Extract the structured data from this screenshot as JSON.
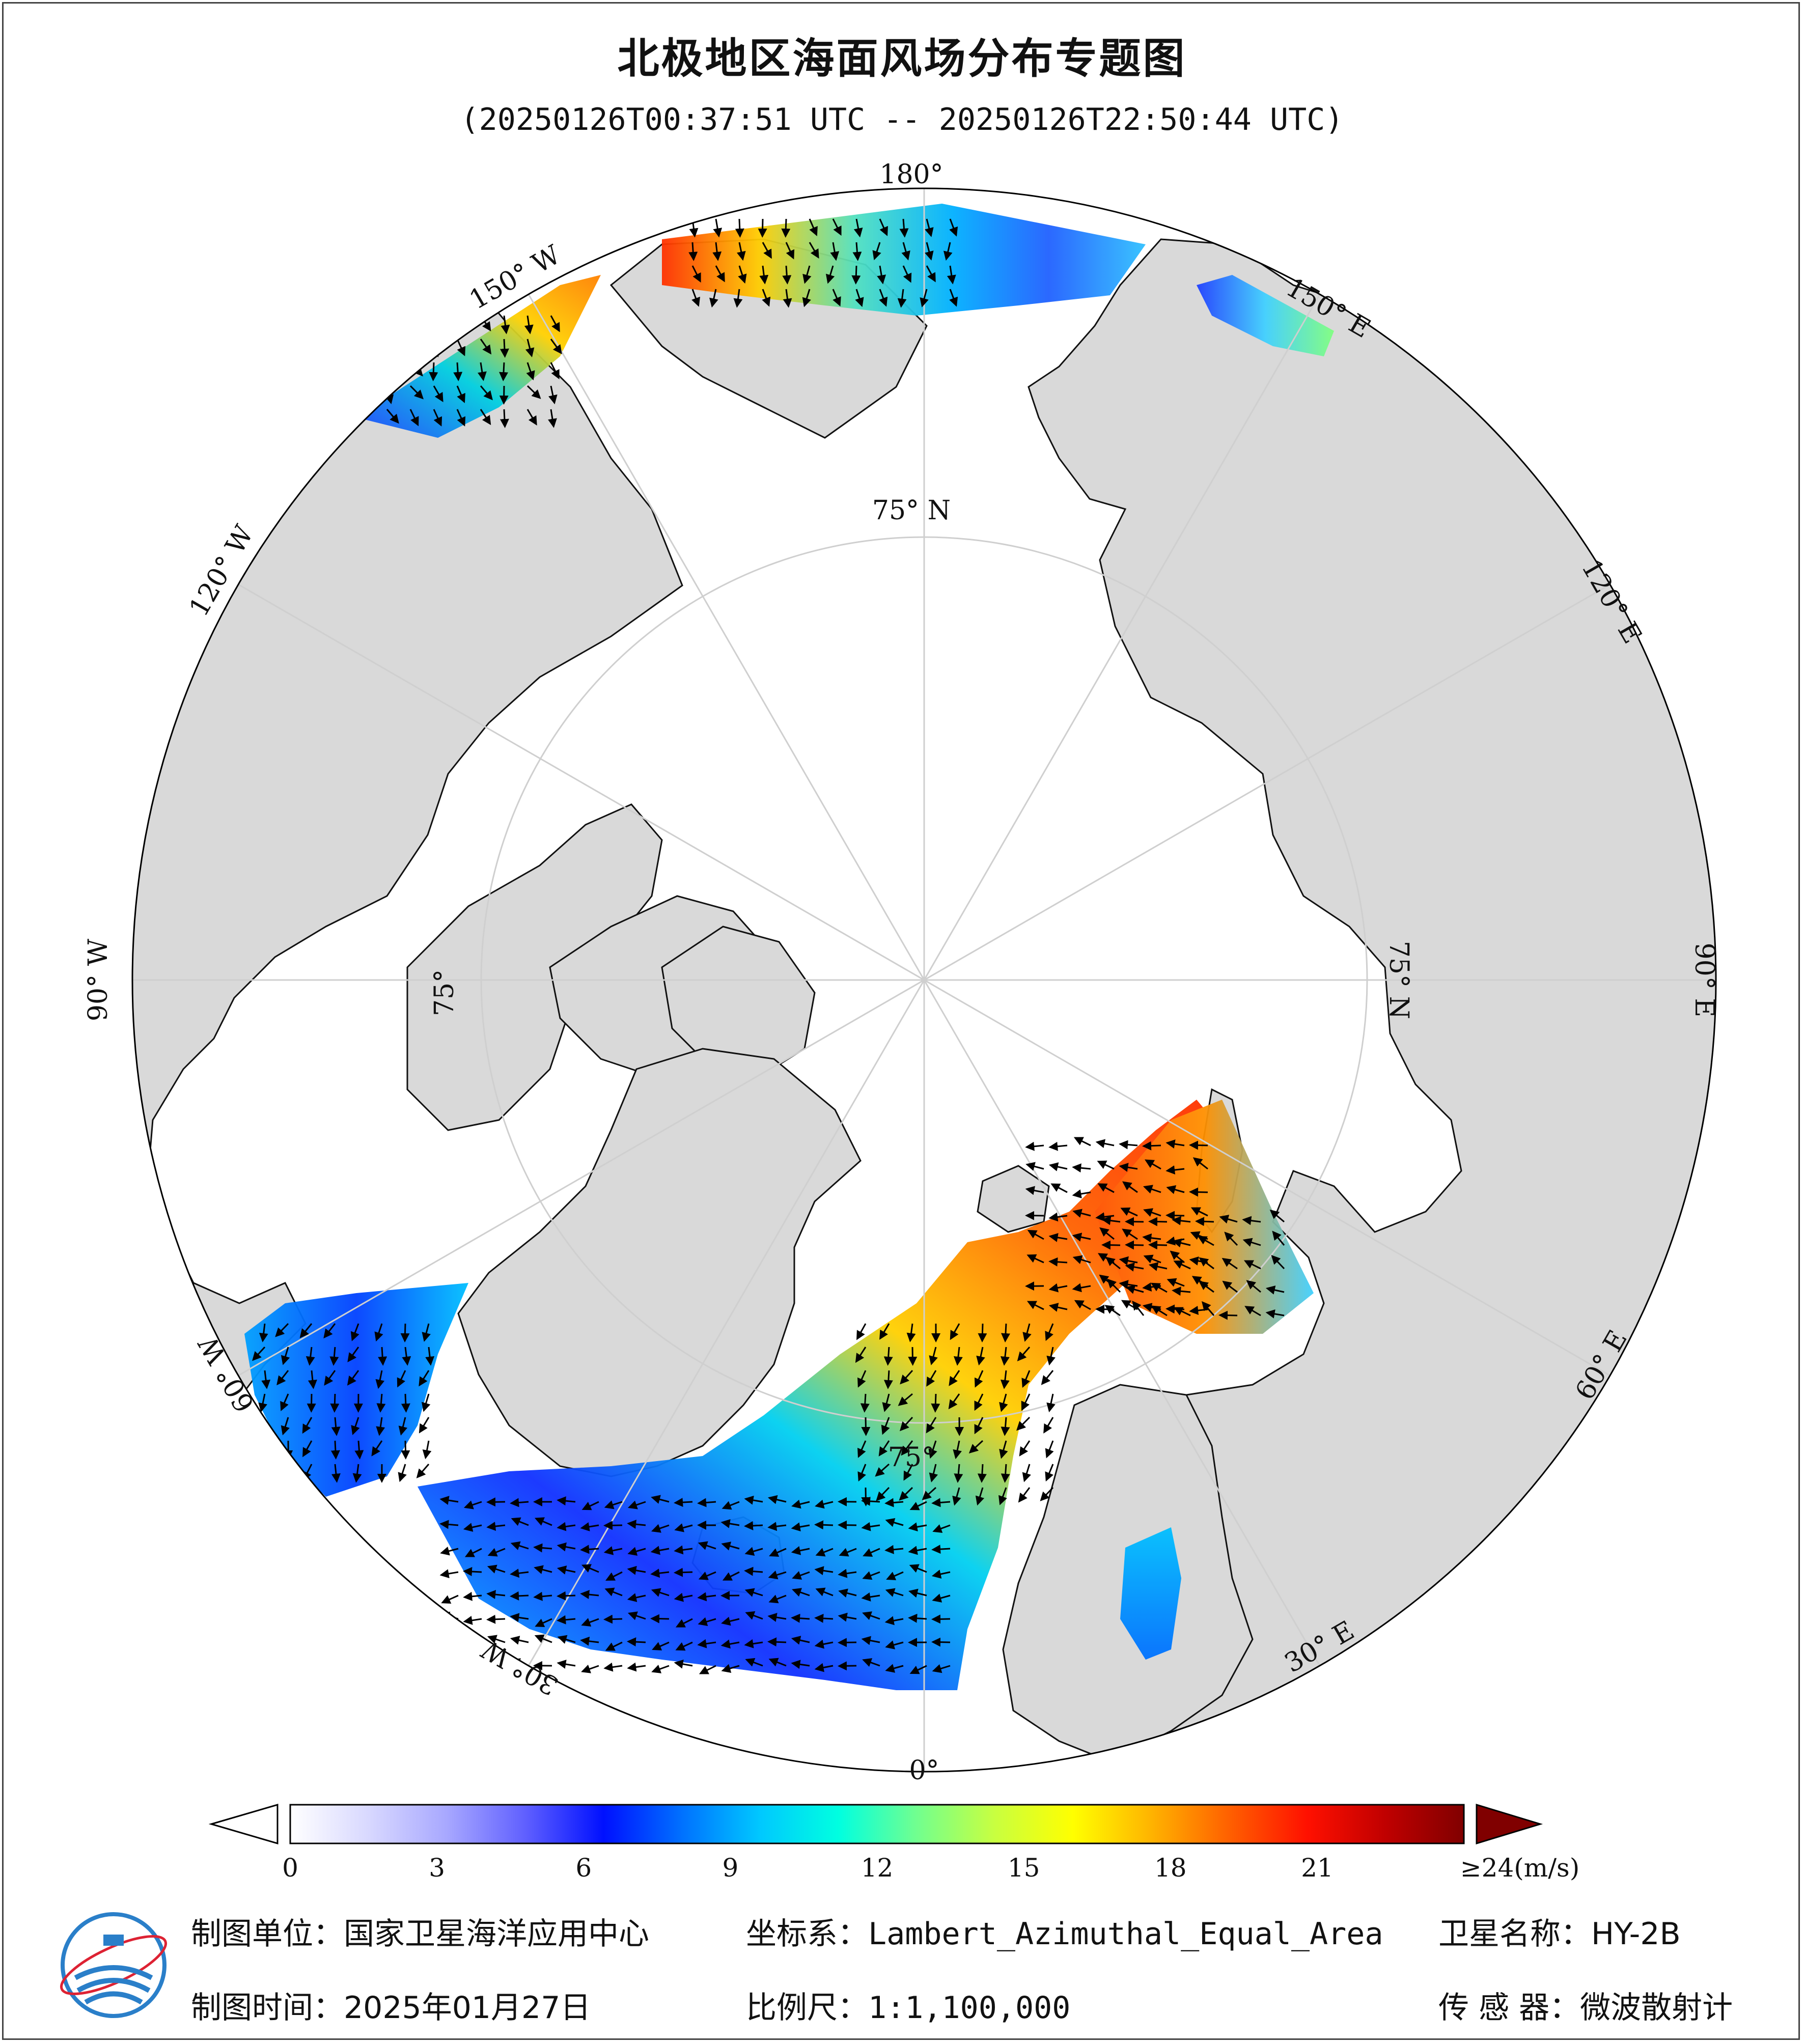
{
  "title": "北极地区海面风场分布专题图",
  "subtitle": "(20250126T00:37:51 UTC -- 20250126T22:50:44 UTC)",
  "graticule": {
    "longitude_labels": [
      "180°",
      "150° E",
      "120° E",
      "90° E",
      "60° E",
      "30° E",
      "0°",
      "30° W",
      "60° W",
      "90° W",
      "120° W",
      "150° W"
    ],
    "latitude_label": "75° N",
    "latitude_label_short": "75°"
  },
  "colorbar": {
    "ticks": [
      "0",
      "3",
      "6",
      "9",
      "12",
      "15",
      "18",
      "21",
      "≥24(m/s)"
    ],
    "tick_values": [
      0,
      3,
      6,
      9,
      12,
      15,
      18,
      21,
      24
    ],
    "min": 0,
    "max": 24,
    "unit": "m/s",
    "colors": [
      "#ffffff",
      "#d8d8ff",
      "#a8a8ff",
      "#6060ff",
      "#0010ff",
      "#0070ff",
      "#00c8ff",
      "#00ffe0",
      "#70ff90",
      "#c8ff40",
      "#ffff00",
      "#ffb400",
      "#ff6000",
      "#ff1000",
      "#c00000",
      "#800000"
    ]
  },
  "colors": {
    "land": "#d9d9d9",
    "ocean": "#ffffff",
    "coast": "#111111",
    "graticule": "#cfcfcf"
  },
  "footer": {
    "unit_label": "制图单位：",
    "unit_value": "国家卫星海洋应用中心",
    "time_label": "制图时间：",
    "time_value": "2025年01月27日",
    "crs_label": "坐标系：",
    "crs_value": "Lambert_Azimuthal_Equal_Area",
    "scale_label": "比例尺：",
    "scale_value": "1:1,100,000",
    "sat_label": "卫星名称：",
    "sat_value": "HY-2B",
    "sensor_label": "传 感 器：",
    "sensor_value": "微波散射计"
  },
  "logo": {
    "icon": "nsoas-logo-icon"
  }
}
